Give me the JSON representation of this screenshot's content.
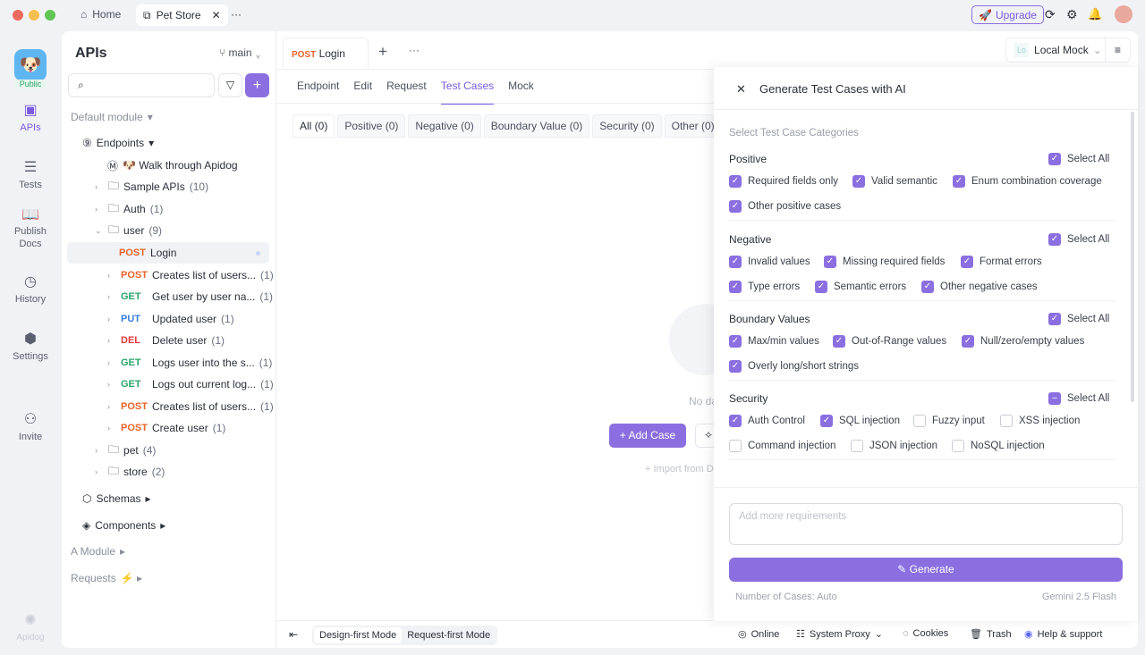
{
  "titlebar": {
    "home": "Home",
    "tab": "Pet Store",
    "more": "···",
    "upgrade": "Upgrade"
  },
  "rail": {
    "public": "Public",
    "items": [
      {
        "label": "APIs",
        "icon": "apis-icon"
      },
      {
        "label": "Tests",
        "icon": "tests-icon"
      },
      {
        "label": "Publish Docs",
        "icon": "book-icon"
      },
      {
        "label": "History",
        "icon": "clock-icon"
      },
      {
        "label": "Settings",
        "icon": "gear-icon"
      },
      {
        "label": "Invite",
        "icon": "user-plus-icon"
      }
    ],
    "brand": "Apidog"
  },
  "sidebar": {
    "title": "APIs",
    "branch": "main",
    "search_placeholder": "",
    "default_module": "Default module",
    "endpoints": "Endpoints",
    "items": [
      {
        "label": "🐶 Walk through Apidog"
      },
      {
        "label": "Sample APIs",
        "count": "(10)"
      },
      {
        "label": "Auth",
        "count": "(1)"
      },
      {
        "label": "user",
        "count": "(9)"
      }
    ],
    "user_items": [
      {
        "method": "POST",
        "label": "Login",
        "count": ""
      },
      {
        "method": "POST",
        "label": "Creates list of users...",
        "count": "(1)"
      },
      {
        "method": "GET",
        "label": "Get user by user na...",
        "count": "(1)"
      },
      {
        "method": "PUT",
        "label": "Updated user",
        "count": "(1)"
      },
      {
        "method": "DEL",
        "label": "Delete user",
        "count": "(1)"
      },
      {
        "method": "GET",
        "label": "Logs user into the s...",
        "count": "(1)"
      },
      {
        "method": "GET",
        "label": "Logs out current log...",
        "count": "(1)"
      },
      {
        "method": "POST",
        "label": "Creates list of users...",
        "count": "(1)"
      },
      {
        "method": "POST",
        "label": "Create user",
        "count": "(1)"
      }
    ],
    "after": [
      {
        "label": "pet",
        "count": "(4)"
      },
      {
        "label": "store",
        "count": "(2)"
      }
    ],
    "schemas": "Schemas",
    "components": "Components",
    "a_module": "A Module",
    "requests": "Requests"
  },
  "main": {
    "tab_method": "POST",
    "tab_label": "Login",
    "env": "Local Mock",
    "env_badge": "Lo",
    "subtabs": [
      "Endpoint",
      "Edit",
      "Request",
      "Test Cases",
      "Mock"
    ],
    "active_subtab": "Test Cases",
    "filters": [
      "All (0)",
      "Positive (0)",
      "Negative (0)",
      "Boundary Value (0)",
      "Security (0)",
      "Other (0)"
    ],
    "empty": "No data",
    "add_case": "+ Add Case",
    "import": "+ Import from D"
  },
  "drawer": {
    "title": "Generate Test Cases with AI",
    "subtitle": "Select Test Case Categories",
    "select_all": "Select All",
    "sections": [
      {
        "title": "Positive",
        "all": "checked",
        "options": [
          {
            "label": "Required fields only",
            "checked": true
          },
          {
            "label": "Valid semantic",
            "checked": true
          },
          {
            "label": "Enum combination coverage",
            "checked": true
          },
          {
            "label": "Other positive cases",
            "checked": true
          }
        ]
      },
      {
        "title": "Negative",
        "all": "checked",
        "options": [
          {
            "label": "Invalid values",
            "checked": true
          },
          {
            "label": "Missing required fields",
            "checked": true
          },
          {
            "label": "Format errors",
            "checked": true
          },
          {
            "label": "Type errors",
            "checked": true
          },
          {
            "label": "Semantic errors",
            "checked": true
          },
          {
            "label": "Other negative cases",
            "checked": true
          }
        ]
      },
      {
        "title": "Boundary Values",
        "all": "checked",
        "options": [
          {
            "label": "Max/min values",
            "checked": true
          },
          {
            "label": "Out-of-Range values",
            "checked": true
          },
          {
            "label": "Null/zero/empty values",
            "checked": true
          },
          {
            "label": "Overly long/short strings",
            "checked": true
          }
        ]
      },
      {
        "title": "Security",
        "all": "indeterminate",
        "options": [
          {
            "label": "Auth Control",
            "checked": true
          },
          {
            "label": "SQL injection",
            "checked": true
          },
          {
            "label": "Fuzzy input",
            "checked": false
          },
          {
            "label": "XSS injection",
            "checked": false
          },
          {
            "label": "Command injection",
            "checked": false
          },
          {
            "label": "JSON injection",
            "checked": false
          },
          {
            "label": "NoSQL injection",
            "checked": false
          }
        ]
      }
    ],
    "req_placeholder": "Add more requirements",
    "generate": "Generate",
    "num_cases": "Number of Cases: Auto",
    "model": "Gemini 2.5 Flash"
  },
  "footer": {
    "design": "Design-first Mode",
    "request": "Request-first Mode",
    "online": "Online",
    "proxy": "System Proxy",
    "cookies": "Cookies",
    "trash": "Trash",
    "help": "Help & support"
  },
  "colors": {
    "accent": "#8b6fe0",
    "post": "#e8622a",
    "get": "#2aa56b",
    "put": "#3b7de0",
    "del": "#e03b3b"
  }
}
